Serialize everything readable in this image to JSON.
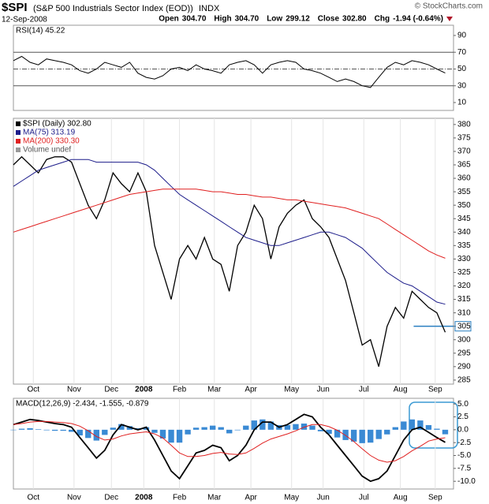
{
  "header": {
    "symbol": "$SPI",
    "name": "(S&P 500 Industrials Sector Index (EOD))",
    "exchange": "INDX",
    "date": "12-Sep-2008",
    "credit": "© StockCharts.com",
    "quote": [
      {
        "label": "Open",
        "value": "304.70"
      },
      {
        "label": "High",
        "value": "304.70"
      },
      {
        "label": "Low",
        "value": "299.12"
      },
      {
        "label": "Close",
        "value": "302.80"
      },
      {
        "label": "Chg",
        "value": "-1.94 (-0.64%)"
      }
    ]
  },
  "chart_data": [
    {
      "type": "line",
      "title": "RSI(14) 45.22",
      "xlim": [
        0,
        53
      ],
      "ylim": [
        0.6,
        102.2
      ],
      "yticks": [
        10,
        30,
        50,
        70,
        90
      ],
      "reference_lines": [
        {
          "value": 70,
          "style": "solid"
        },
        {
          "value": 50,
          "style": "dashdot"
        },
        {
          "value": 30,
          "style": "solid"
        }
      ],
      "series": [
        {
          "color": "#000000",
          "values": [
            60,
            65,
            58,
            55,
            62,
            60,
            58,
            55,
            48,
            45,
            50,
            58,
            55,
            52,
            58,
            45,
            40,
            38,
            42,
            50,
            52,
            48,
            55,
            50,
            48,
            45,
            55,
            58,
            60,
            55,
            45,
            55,
            58,
            60,
            58,
            50,
            48,
            45,
            40,
            35,
            38,
            35,
            30,
            28,
            40,
            52,
            58,
            55,
            60,
            58,
            55,
            50,
            45.22
          ]
        }
      ]
    },
    {
      "type": "line",
      "xlim": [
        0,
        53
      ],
      "ylim": [
        283.5,
        382.3
      ],
      "yticks": [
        285,
        290,
        295,
        300,
        305,
        310,
        315,
        320,
        325,
        330,
        335,
        340,
        345,
        350,
        355,
        360,
        365,
        370,
        375,
        380
      ],
      "xticks": [
        {
          "value": 2.4,
          "label": "Oct"
        },
        {
          "value": 7.3,
          "label": "Nov"
        },
        {
          "value": 11.8,
          "label": "Dec"
        },
        {
          "value": 15.7,
          "label": "2008"
        },
        {
          "value": 20.0,
          "label": "Feb"
        },
        {
          "value": 24.2,
          "label": "Mar"
        },
        {
          "value": 28.6,
          "label": "Apr"
        },
        {
          "value": 33.5,
          "label": "May"
        },
        {
          "value": 37.3,
          "label": "Jun"
        },
        {
          "value": 42.2,
          "label": "Jul"
        },
        {
          "value": 46.6,
          "label": "Aug"
        },
        {
          "value": 50.8,
          "label": "Sep"
        }
      ],
      "hline": {
        "value": 305,
        "color": "#2a7fc0"
      },
      "volume_label": "Volume undef",
      "series": [
        {
          "name": "$SPI (Daily) 302.80",
          "color": "#000000",
          "values": [
            365,
            368,
            365,
            362,
            367,
            368,
            368,
            366,
            358,
            350,
            345,
            352,
            362,
            358,
            355,
            362,
            355,
            335,
            325,
            315,
            330,
            335,
            330,
            338,
            330,
            328,
            318,
            335,
            340,
            350,
            345,
            330,
            342,
            347,
            350,
            352,
            345,
            342,
            338,
            330,
            322,
            310,
            298,
            300,
            290,
            305,
            312,
            308,
            318,
            315,
            312,
            310,
            302.8
          ]
        },
        {
          "name": "MA(75) 313.19",
          "color": "#1c1c8a",
          "values": [
            357,
            359,
            361,
            363,
            364,
            365,
            366,
            367,
            367,
            367,
            366,
            366,
            366,
            366,
            366,
            366,
            365,
            363,
            360,
            357,
            354,
            352,
            350,
            348,
            346,
            344,
            342,
            340,
            338,
            337,
            336,
            335,
            335,
            336,
            337,
            338,
            339,
            340,
            340,
            339,
            338,
            336,
            334,
            331,
            328,
            325,
            323,
            321,
            320,
            318,
            316,
            314,
            313.19
          ]
        },
        {
          "name": "MA(200) 330.30",
          "color": "#e02020",
          "values": [
            340,
            341,
            342,
            343,
            344,
            345,
            346,
            347,
            348,
            349,
            350,
            351,
            352,
            353,
            354,
            354.5,
            355,
            355.5,
            356,
            356,
            356,
            356,
            356,
            355.5,
            355,
            355,
            354.5,
            354,
            354,
            353.5,
            353,
            353,
            352.5,
            352,
            352,
            351.5,
            351,
            350.5,
            350,
            349.5,
            349,
            348,
            347,
            346,
            345,
            343,
            341,
            339,
            337,
            335,
            333,
            331.5,
            330.3
          ]
        }
      ]
    },
    {
      "type": "line",
      "title": "MACD(12,26,9) -2.434, -1.555, -0.879",
      "xlim": [
        0,
        53
      ],
      "ylim": [
        -11.5,
        6.1
      ],
      "yticks": [
        {
          "value": 5,
          "label": "5.0"
        },
        {
          "value": 2.5,
          "label": "2.5"
        },
        {
          "value": 0,
          "label": "0.0"
        },
        {
          "value": -2.5,
          "label": "-2.5"
        },
        {
          "value": -5,
          "label": "-5.0"
        },
        {
          "value": -7.5,
          "label": "-7.5"
        },
        {
          "value": -10,
          "label": "-10.0"
        }
      ],
      "xticks": [
        {
          "value": 2.4,
          "label": "Oct"
        },
        {
          "value": 7.3,
          "label": "Nov"
        },
        {
          "value": 11.8,
          "label": "Dec"
        },
        {
          "value": 15.7,
          "label": "2008"
        },
        {
          "value": 20.0,
          "label": "Feb"
        },
        {
          "value": 24.2,
          "label": "Mar"
        },
        {
          "value": 28.6,
          "label": "Apr"
        },
        {
          "value": 33.5,
          "label": "May"
        },
        {
          "value": 37.3,
          "label": "Jun"
        },
        {
          "value": 42.2,
          "label": "Jul"
        },
        {
          "value": 46.6,
          "label": "Aug"
        },
        {
          "value": 50.8,
          "label": "Sep"
        }
      ],
      "series": [
        {
          "type": "bar",
          "color": "#3a8ad4",
          "values": [
            0,
            0.2,
            0.3,
            0.1,
            -0.1,
            -0.2,
            -0.2,
            -0.4,
            -1.1,
            -1.6,
            -2.1,
            -1,
            0.4,
            1.1,
            0.7,
            0.3,
            0.5,
            -0.6,
            -1.7,
            -2.5,
            -2.5,
            -0.9,
            0.4,
            0.5,
            0.8,
            0.5,
            -0.7,
            -0.1,
            0.8,
            1.8,
            2,
            1.6,
            0.9,
            0.9,
            1.1,
            1.2,
            0.8,
            -0.3,
            -0.8,
            -1.5,
            -2,
            -2.3,
            -2.6,
            -2.5,
            -1.8,
            -0.9,
            0.5,
            1.6,
            2,
            1.8,
            0.9,
            0.2,
            -0.879
          ]
        },
        {
          "color": "#000000",
          "values": [
            1,
            1.5,
            2,
            1.8,
            1.5,
            1.2,
            1,
            0.5,
            -1.5,
            -3.5,
            -5.5,
            -4,
            -1,
            1,
            0.5,
            0,
            0.5,
            -2,
            -5,
            -8,
            -9.5,
            -7,
            -4.5,
            -4,
            -3,
            -3.5,
            -6,
            -5,
            -3,
            0,
            1.5,
            1.5,
            0.5,
            1,
            2,
            3,
            2.5,
            0.5,
            -1,
            -3,
            -5,
            -7,
            -9,
            -10,
            -9.5,
            -8,
            -5,
            -2,
            0,
            0.5,
            -0.5,
            -1.5,
            -2.434
          ]
        },
        {
          "color": "#e02020",
          "values": [
            1,
            1.2,
            1.5,
            1.6,
            1.6,
            1.5,
            1.4,
            1.2,
            0.7,
            -0.2,
            -1.3,
            -2,
            -1.8,
            -1.2,
            -0.8,
            -0.6,
            -0.4,
            -0.8,
            -1.6,
            -3,
            -4.5,
            -5.2,
            -5.2,
            -5,
            -4.6,
            -4.4,
            -4.7,
            -4.8,
            -4.5,
            -3.6,
            -2.6,
            -1.8,
            -1.3,
            -0.8,
            -0.2,
            0.5,
            1,
            1,
            0.6,
            -0.1,
            -1.1,
            -2.3,
            -3.7,
            -5,
            -5.9,
            -6.3,
            -6,
            -5.2,
            -4.1,
            -3.2,
            -2.2,
            -1.8,
            -1.555
          ]
        }
      ]
    }
  ]
}
